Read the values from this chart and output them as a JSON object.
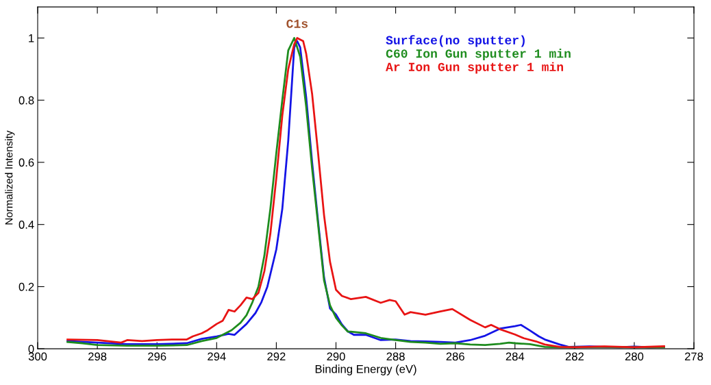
{
  "chart_data": {
    "type": "line",
    "xlabel": "Binding Energy (eV)",
    "ylabel": "Normalized Intensity",
    "xlim": [
      300,
      278
    ],
    "xticks": [
      300,
      298,
      296,
      294,
      292,
      290,
      288,
      286,
      284,
      282,
      280,
      278
    ],
    "ylim": [
      0,
      1.1
    ],
    "yticks": [
      0,
      0.2,
      0.4,
      0.6,
      0.8,
      1
    ],
    "grid": false,
    "legend": "top right",
    "marker": "none",
    "line_style": "solid",
    "annotations": [
      {
        "text": "C1s",
        "x": 291.3,
        "y": 1.0
      }
    ],
    "series": [
      {
        "name": "Surface(no sputter)",
        "color": "#1414e6",
        "x": [
          299,
          298,
          297,
          296,
          295,
          294.5,
          294,
          293.6,
          293.4,
          293,
          292.7,
          292.5,
          292.3,
          292,
          291.8,
          291.6,
          291.4,
          291.3,
          291.2,
          291,
          290.8,
          290.6,
          290.4,
          290.2,
          290,
          289.8,
          289.6,
          289.4,
          289,
          288.5,
          288,
          287.5,
          287,
          286.5,
          286,
          285.5,
          285,
          284.5,
          284,
          283.8,
          283.5,
          283.2,
          283,
          282.5,
          282.2,
          281.5,
          281,
          280.5,
          280,
          279.5,
          279
        ],
        "values": [
          0.025,
          0.02,
          0.015,
          0.015,
          0.018,
          0.032,
          0.04,
          0.048,
          0.045,
          0.08,
          0.115,
          0.15,
          0.2,
          0.32,
          0.45,
          0.67,
          0.97,
          0.99,
          0.97,
          0.81,
          0.6,
          0.41,
          0.23,
          0.13,
          0.11,
          0.078,
          0.056,
          0.045,
          0.045,
          0.028,
          0.03,
          0.025,
          0.024,
          0.022,
          0.02,
          0.028,
          0.042,
          0.065,
          0.073,
          0.077,
          0.059,
          0.04,
          0.03,
          0.014,
          0.006,
          0.008,
          0.006,
          0.005,
          0.007,
          0.005,
          0.006
        ]
      },
      {
        "name": "C60 Ion Gun sputter 1 min",
        "color": "#1e8c1e",
        "x": [
          299,
          298.5,
          298,
          297,
          296,
          295,
          294.5,
          294,
          293.5,
          293.2,
          293,
          292.8,
          292.6,
          292.4,
          292.2,
          292,
          291.8,
          291.6,
          291.4,
          291.2,
          291,
          290.8,
          290.6,
          290.4,
          290.2,
          290,
          289.8,
          289.6,
          289.5,
          289,
          288.5,
          288,
          287.5,
          287,
          286.5,
          286,
          285.5,
          285,
          284.5,
          284.2,
          284,
          283.5,
          283,
          282.5,
          282,
          281,
          280,
          279
        ],
        "values": [
          0.022,
          0.018,
          0.012,
          0.01,
          0.01,
          0.012,
          0.025,
          0.035,
          0.06,
          0.084,
          0.108,
          0.15,
          0.2,
          0.3,
          0.45,
          0.63,
          0.8,
          0.96,
          1.0,
          0.94,
          0.78,
          0.58,
          0.4,
          0.22,
          0.14,
          0.1,
          0.075,
          0.055,
          0.055,
          0.05,
          0.035,
          0.028,
          0.022,
          0.02,
          0.016,
          0.018,
          0.014,
          0.012,
          0.016,
          0.02,
          0.018,
          0.015,
          0.006,
          0.005,
          0.005,
          0.006,
          0.005,
          0.005
        ]
      },
      {
        "name": "Ar Ion Gun sputter 1 min",
        "color": "#e81414",
        "x": [
          299,
          298,
          297.2,
          297,
          296.5,
          296,
          295.5,
          295,
          294.8,
          294.5,
          294.3,
          294,
          293.8,
          293.6,
          293.4,
          293.2,
          293,
          292.8,
          292.6,
          292.4,
          292.2,
          292,
          291.8,
          291.6,
          291.4,
          291.3,
          291.1,
          291,
          290.8,
          290.6,
          290.4,
          290.2,
          290,
          289.8,
          289.5,
          289,
          288.5,
          288.2,
          288,
          287.7,
          287.5,
          287,
          286.5,
          286.1,
          285.5,
          285,
          284.8,
          284.5,
          284,
          283.7,
          283.3,
          283,
          282.5,
          282,
          281,
          280,
          279
        ],
        "values": [
          0.03,
          0.028,
          0.02,
          0.028,
          0.025,
          0.028,
          0.03,
          0.03,
          0.04,
          0.05,
          0.06,
          0.08,
          0.09,
          0.125,
          0.12,
          0.14,
          0.165,
          0.16,
          0.18,
          0.25,
          0.37,
          0.55,
          0.75,
          0.9,
          0.98,
          1.0,
          0.99,
          0.95,
          0.82,
          0.63,
          0.43,
          0.28,
          0.19,
          0.17,
          0.16,
          0.167,
          0.148,
          0.157,
          0.153,
          0.11,
          0.118,
          0.11,
          0.12,
          0.128,
          0.093,
          0.069,
          0.077,
          0.063,
          0.046,
          0.034,
          0.024,
          0.014,
          0.006,
          0.005,
          0.008,
          0.005,
          0.008
        ]
      }
    ]
  }
}
